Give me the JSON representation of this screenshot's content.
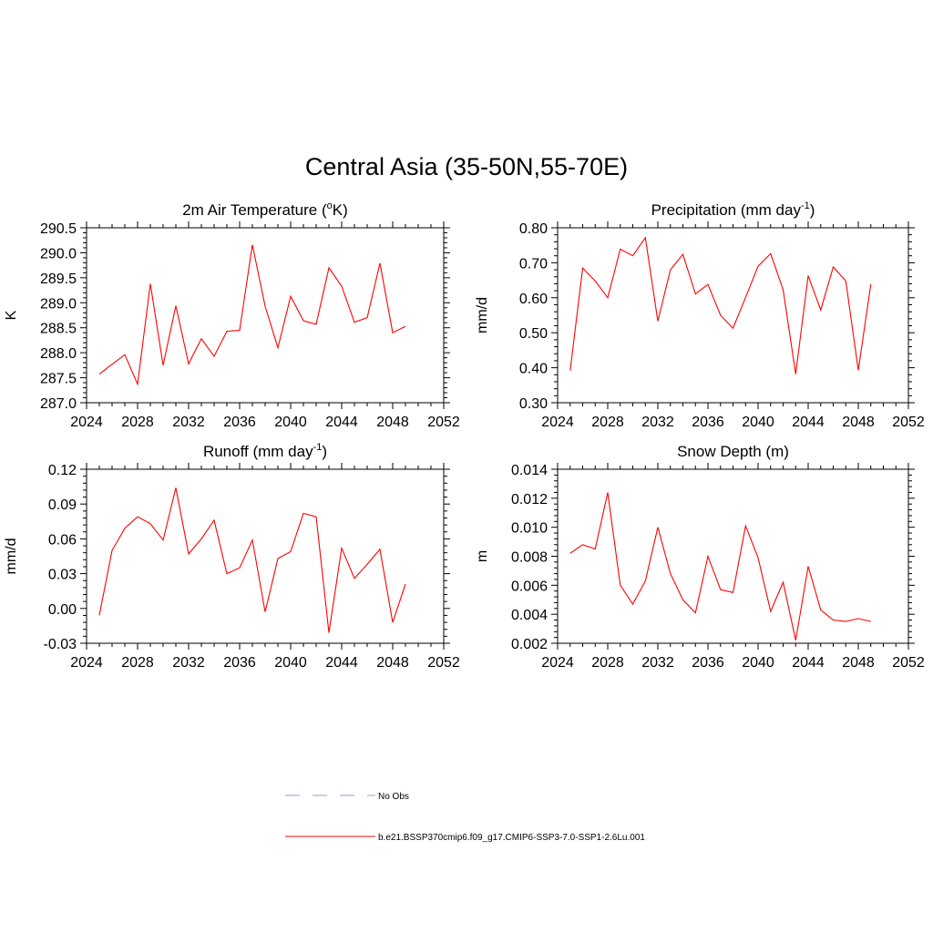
{
  "figure": {
    "title": "Central Asia (35-50N,55-70E)"
  },
  "colors": {
    "series": "#ff0000",
    "obs": "#9999dd",
    "axis": "#000000"
  },
  "chart_data": [
    {
      "type": "line",
      "title": "2m Air Temperature (oK)",
      "title_parts": [
        "2m Air Temperature (",
        "o",
        "K)"
      ],
      "ylabel": "K",
      "xlim": [
        2024,
        2052
      ],
      "ylim": [
        287.0,
        290.5
      ],
      "xticks": [
        2024,
        2028,
        2032,
        2036,
        2040,
        2044,
        2048,
        2052
      ],
      "yticks": [
        "287.0",
        "287.5",
        "288.0",
        "288.5",
        "289.0",
        "289.5",
        "290.0",
        "290.5"
      ],
      "x": [
        2025,
        2026,
        2027,
        2028,
        2029,
        2030,
        2031,
        2032,
        2033,
        2034,
        2035,
        2036,
        2037,
        2038,
        2039,
        2040,
        2041,
        2042,
        2043,
        2044,
        2045,
        2046,
        2047,
        2048,
        2049
      ],
      "series": [
        {
          "values": [
            287.57,
            287.77,
            287.96,
            287.37,
            289.38,
            287.75,
            288.94,
            287.78,
            288.28,
            287.93,
            288.43,
            288.45,
            290.16,
            288.93,
            288.1,
            289.13,
            288.64,
            288.57,
            289.7,
            289.33,
            288.61,
            288.7,
            289.79,
            288.4,
            288.53
          ]
        }
      ]
    },
    {
      "type": "line",
      "title": "Precipitation (mm day-1)",
      "title_parts": [
        "Precipitation (mm day",
        "-1",
        ")"
      ],
      "ylabel": "mm/d",
      "xlim": [
        2024,
        2052
      ],
      "ylim": [
        0.3,
        0.8
      ],
      "xticks": [
        2024,
        2028,
        2032,
        2036,
        2040,
        2044,
        2048,
        2052
      ],
      "yticks": [
        "0.30",
        "0.40",
        "0.50",
        "0.60",
        "0.70",
        "0.80"
      ],
      "x": [
        2025,
        2026,
        2027,
        2028,
        2029,
        2030,
        2031,
        2032,
        2033,
        2034,
        2035,
        2036,
        2037,
        2038,
        2039,
        2040,
        2041,
        2042,
        2043,
        2044,
        2045,
        2046,
        2047,
        2048,
        2049
      ],
      "series": [
        {
          "values": [
            0.392,
            0.685,
            0.648,
            0.6,
            0.739,
            0.72,
            0.772,
            0.533,
            0.68,
            0.724,
            0.611,
            0.638,
            0.55,
            0.513,
            0.601,
            0.69,
            0.726,
            0.623,
            0.382,
            0.663,
            0.565,
            0.688,
            0.648,
            0.393,
            0.639
          ]
        }
      ]
    },
    {
      "type": "line",
      "title": "Runoff (mm day-1)",
      "title_parts": [
        "Runoff (mm day",
        "-1",
        ")"
      ],
      "ylabel": "mm/d",
      "xlim": [
        2024,
        2052
      ],
      "ylim": [
        -0.03,
        0.12
      ],
      "xticks": [
        2024,
        2028,
        2032,
        2036,
        2040,
        2044,
        2048,
        2052
      ],
      "yticks": [
        "-0.03",
        "0.00",
        "0.03",
        "0.06",
        "0.09",
        "0.12"
      ],
      "x": [
        2025,
        2026,
        2027,
        2028,
        2029,
        2030,
        2031,
        2032,
        2033,
        2034,
        2035,
        2036,
        2037,
        2038,
        2039,
        2040,
        2041,
        2042,
        2043,
        2044,
        2045,
        2046,
        2047,
        2048,
        2049
      ],
      "series": [
        {
          "values": [
            -0.006,
            0.05,
            0.069,
            0.079,
            0.073,
            0.059,
            0.104,
            0.047,
            0.06,
            0.076,
            0.03,
            0.035,
            0.059,
            -0.003,
            0.043,
            0.049,
            0.082,
            0.079,
            -0.021,
            0.052,
            0.026,
            0.038,
            0.051,
            -0.012,
            0.021
          ]
        }
      ]
    },
    {
      "type": "line",
      "title": "Snow Depth (m)",
      "title_parts": [
        "Snow Depth (m)",
        "",
        ""
      ],
      "ylabel": "m",
      "xlim": [
        2024,
        2052
      ],
      "ylim": [
        0.002,
        0.014
      ],
      "xticks": [
        2024,
        2028,
        2032,
        2036,
        2040,
        2044,
        2048,
        2052
      ],
      "yticks": [
        "0.002",
        "0.004",
        "0.006",
        "0.008",
        "0.010",
        "0.012",
        "0.014"
      ],
      "x": [
        2025,
        2026,
        2027,
        2028,
        2029,
        2030,
        2031,
        2032,
        2033,
        2034,
        2035,
        2036,
        2037,
        2038,
        2039,
        2040,
        2041,
        2042,
        2043,
        2044,
        2045,
        2046,
        2047,
        2048,
        2049
      ],
      "series": [
        {
          "values": [
            0.0082,
            0.0088,
            0.0085,
            0.0124,
            0.006,
            0.0047,
            0.0063,
            0.01,
            0.0068,
            0.005,
            0.0041,
            0.008,
            0.0057,
            0.0055,
            0.0101,
            0.0079,
            0.0042,
            0.0062,
            0.0022,
            0.0073,
            0.0043,
            0.0036,
            0.0035,
            0.0037,
            0.0035
          ]
        }
      ]
    }
  ],
  "legend": {
    "entries": [
      {
        "label": "No Obs",
        "style": "dashed"
      },
      {
        "label": "b.e21.BSSP370cmip6.f09_g17.CMIP6-SSP3-7.0-SSP1-2.6Lu.001",
        "style": "solid"
      }
    ]
  }
}
